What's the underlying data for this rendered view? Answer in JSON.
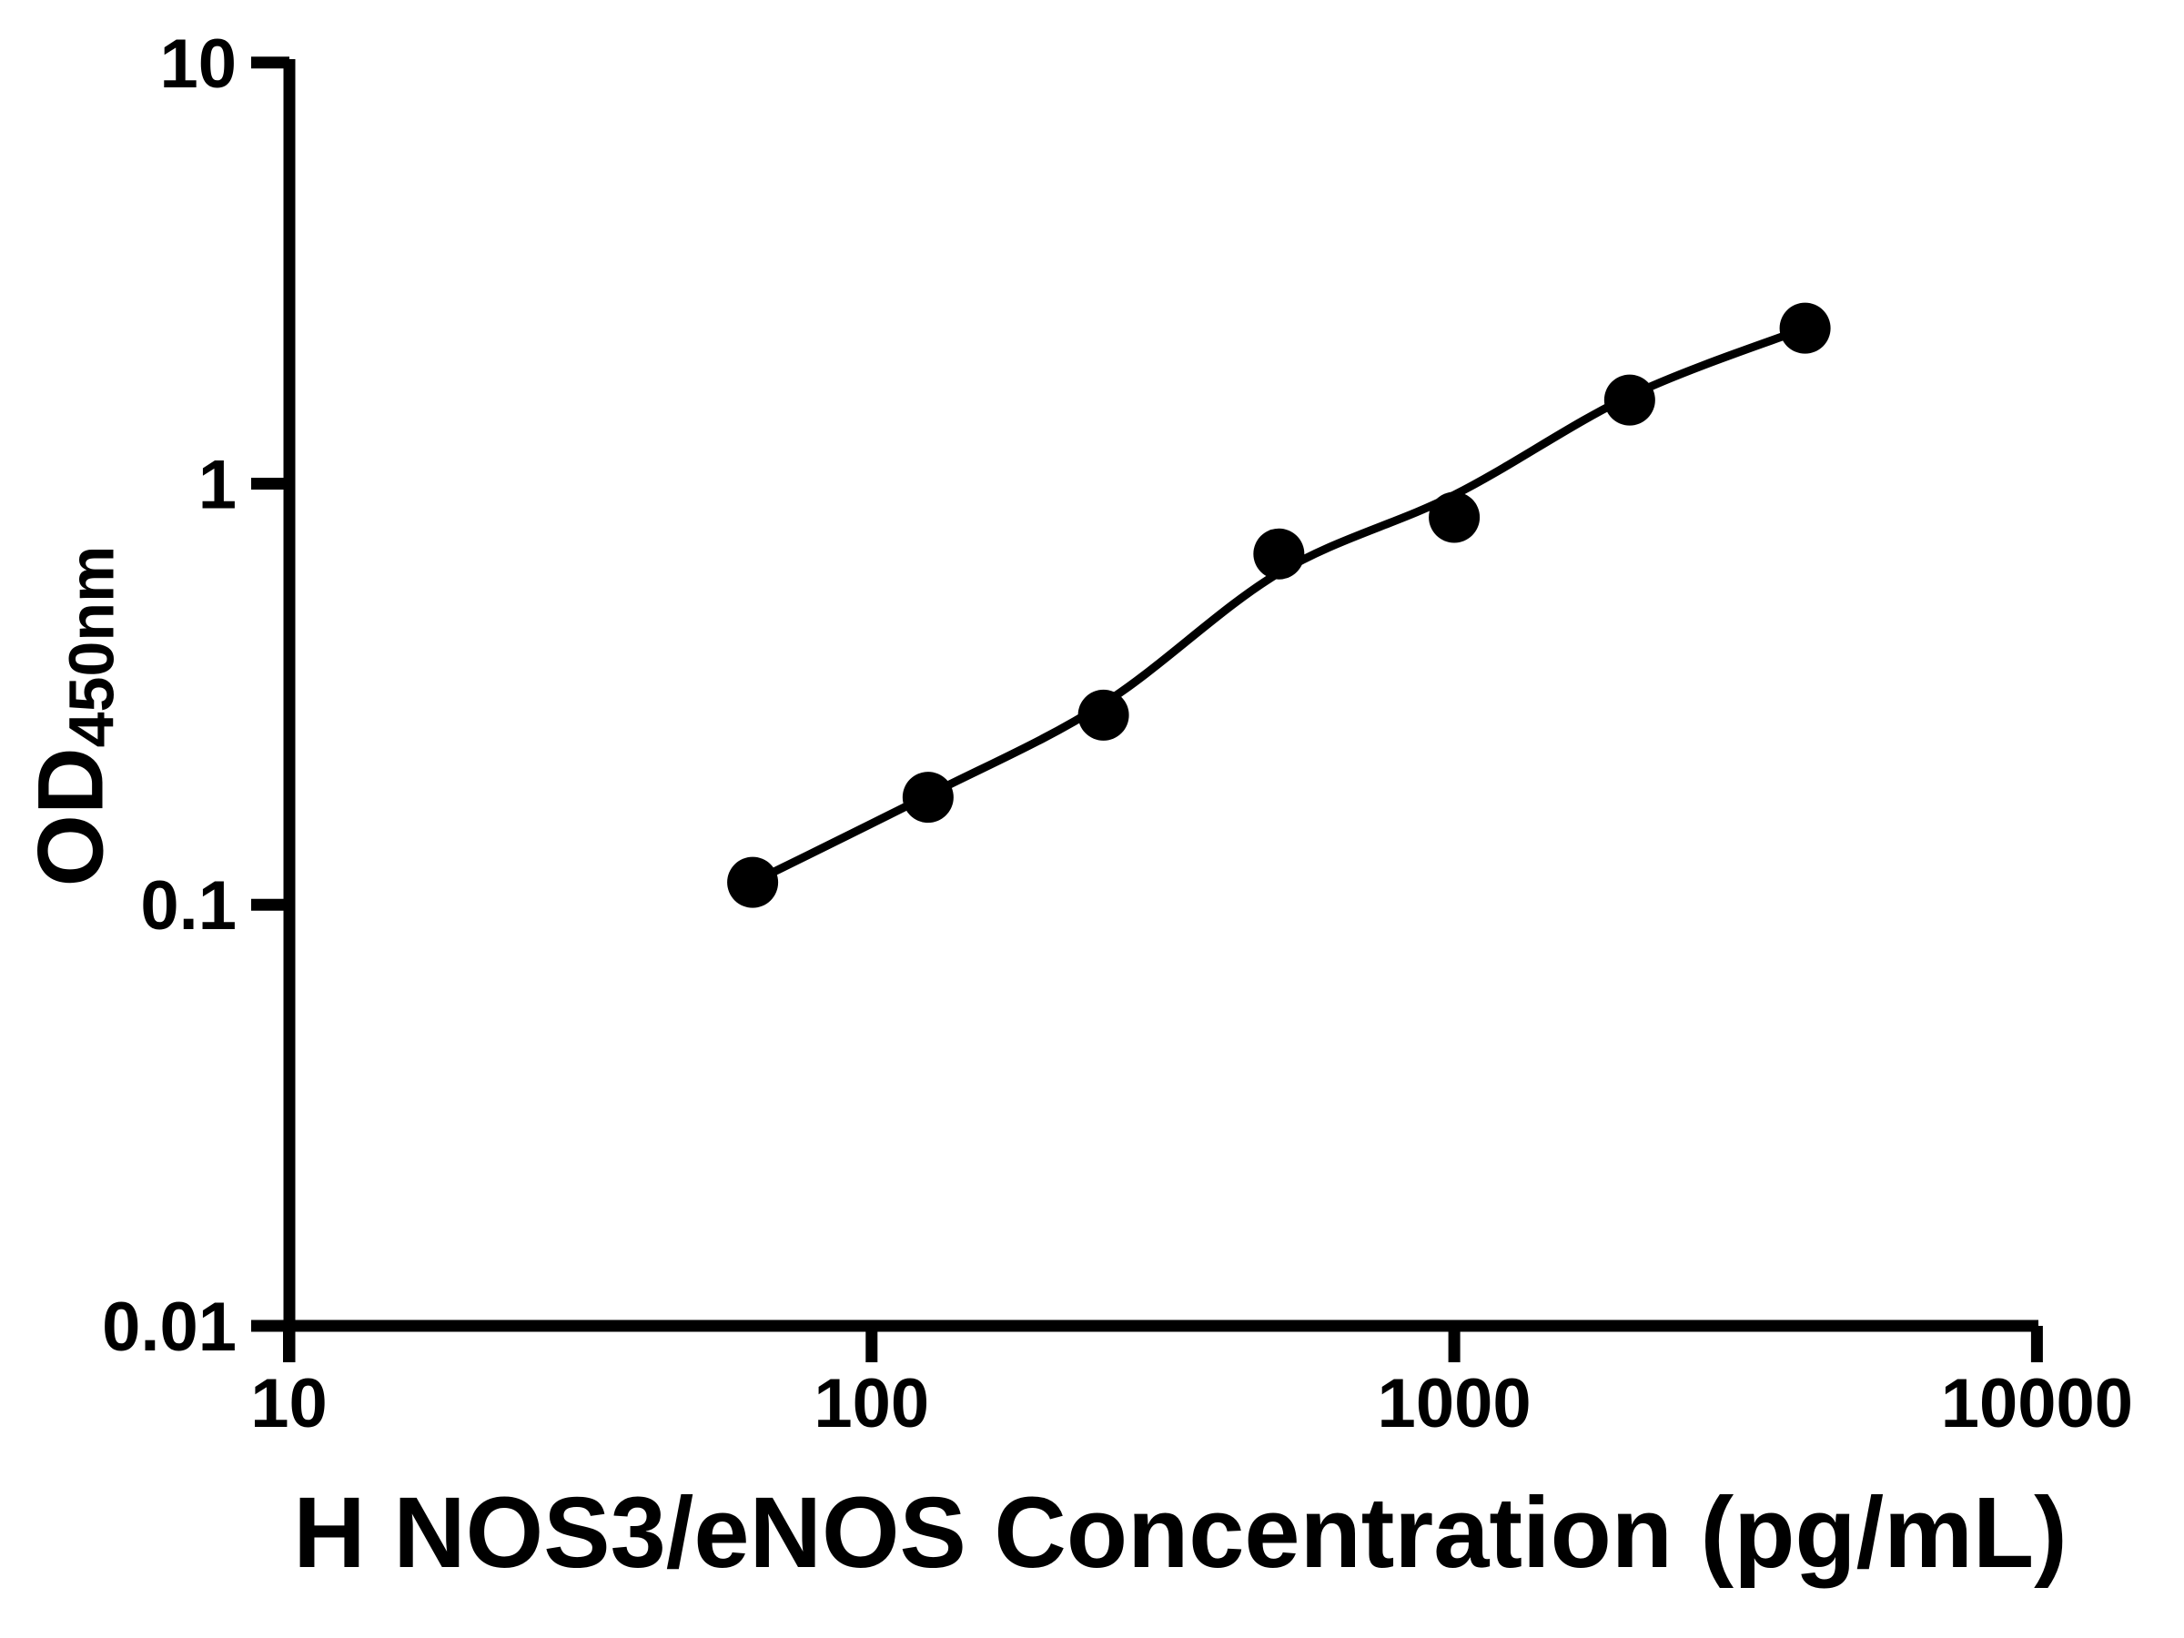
{
  "colors": {
    "ink": "#000000",
    "background": "#ffffff"
  },
  "chart_data": {
    "type": "scatter",
    "title": "",
    "xlabel": "H NOS3/eNOS Concentration (pg/mL)",
    "ylabel": "OD450nm",
    "ylabel_main": "OD",
    "ylabel_sub": "450nm",
    "x_scale": "log",
    "y_scale": "log",
    "xlim": [
      10,
      10000
    ],
    "ylim": [
      0.01,
      10
    ],
    "grid": false,
    "legend": null,
    "x_ticks": [
      {
        "value": 10,
        "label": "10"
      },
      {
        "value": 100,
        "label": "100"
      },
      {
        "value": 1000,
        "label": "1000"
      },
      {
        "value": 10000,
        "label": "10000"
      }
    ],
    "y_ticks": [
      {
        "value": 10,
        "label": "10"
      },
      {
        "value": 1,
        "label": "1"
      },
      {
        "value": 0.1,
        "label": "0.1"
      },
      {
        "value": 0.01,
        "label": "0.01"
      }
    ],
    "marker": {
      "shape": "circle",
      "color": "#000000"
    },
    "series": [
      {
        "name": "standard-points",
        "type": "scatter",
        "points": [
          {
            "x": 62.5,
            "y": 0.113
          },
          {
            "x": 125,
            "y": 0.18
          },
          {
            "x": 250,
            "y": 0.282
          },
          {
            "x": 500,
            "y": 0.681
          },
          {
            "x": 1000,
            "y": 0.832
          },
          {
            "x": 2000,
            "y": 1.58
          },
          {
            "x": 4000,
            "y": 2.34
          }
        ]
      },
      {
        "name": "fitted-curve",
        "type": "line",
        "points": [
          {
            "x": 62.5,
            "y": 0.113
          },
          {
            "x": 125,
            "y": 0.182
          },
          {
            "x": 250,
            "y": 0.3
          },
          {
            "x": 500,
            "y": 0.614
          },
          {
            "x": 1000,
            "y": 0.94
          },
          {
            "x": 2000,
            "y": 1.615
          },
          {
            "x": 4000,
            "y": 2.34
          }
        ]
      }
    ]
  }
}
